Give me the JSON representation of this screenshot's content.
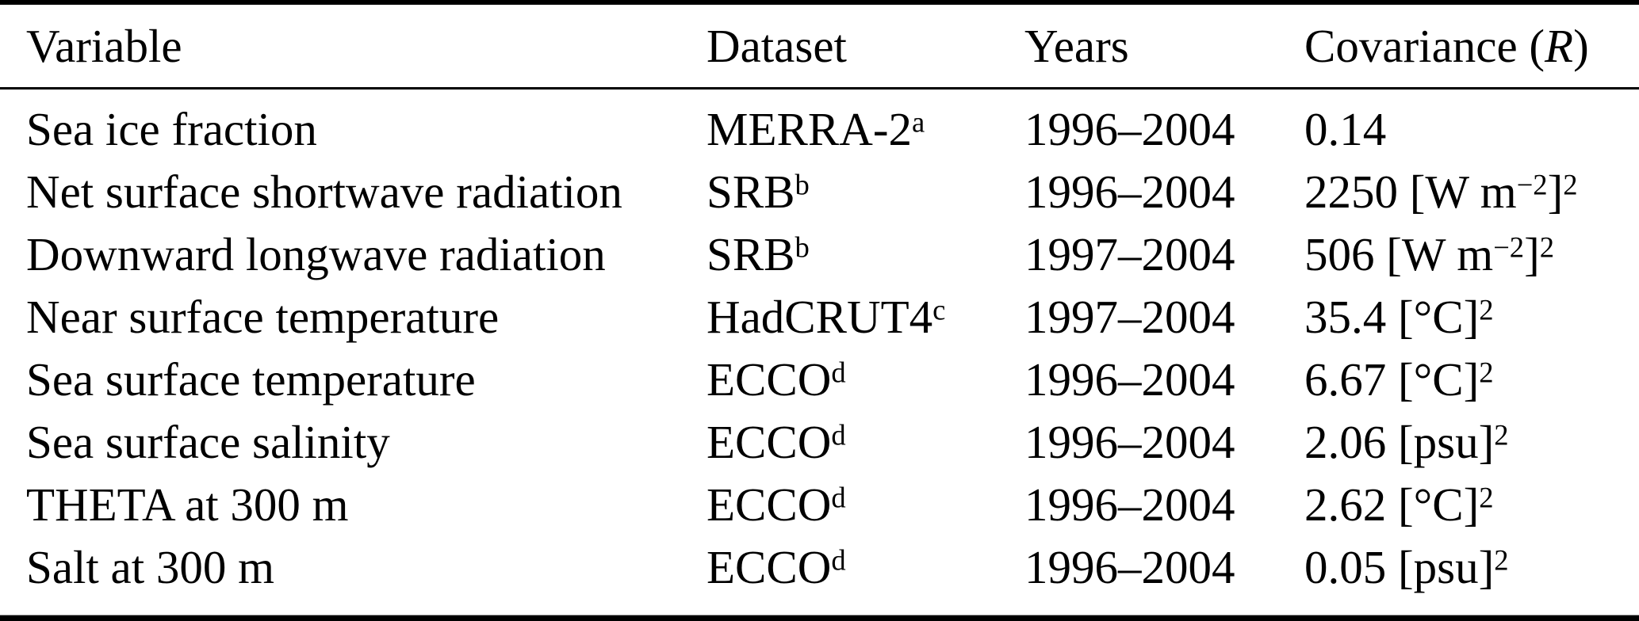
{
  "table": {
    "columns": {
      "variable": "Variable",
      "dataset": "Dataset",
      "years": "Years",
      "covariance_prefix": "Covariance (",
      "covariance_symbol": "R",
      "covariance_suffix": ")"
    },
    "rows": [
      {
        "variable": "Sea ice fraction",
        "dataset": "MERRA-2^{a}",
        "years": "1996–2004",
        "covariance": "0.14"
      },
      {
        "variable": "Net surface shortwave radiation",
        "dataset": "SRB^{b}",
        "years": "1996–2004",
        "covariance": "2250 [W m^{−2}]^{2}"
      },
      {
        "variable": "Downward longwave radiation",
        "dataset": "SRB^{b}",
        "years": "1997–2004",
        "covariance": "506 [W m^{−2}]^{2}"
      },
      {
        "variable": "Near surface temperature",
        "dataset": "HadCRUT4^{c}",
        "years": "1997–2004",
        "covariance": "35.4 [°C]^{2}"
      },
      {
        "variable": "Sea surface temperature",
        "dataset": "ECCO^{d}",
        "years": "1996–2004",
        "covariance": "6.67 [°C]^{2}"
      },
      {
        "variable": "Sea surface salinity",
        "dataset": "ECCO^{d}",
        "years": "1996–2004",
        "covariance": "2.06 [psu]^{2}"
      },
      {
        "variable": "THETA at 300 m",
        "dataset": "ECCO^{d}",
        "years": "1996–2004",
        "covariance": "2.62 [°C]^{2}"
      },
      {
        "variable": "Salt at 300 m",
        "dataset": "ECCO^{d}",
        "years": "1996–2004",
        "covariance": "0.05 [psu]^{2}"
      }
    ]
  }
}
